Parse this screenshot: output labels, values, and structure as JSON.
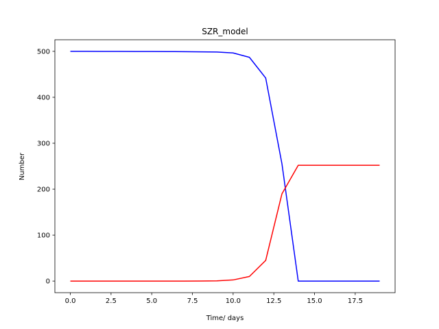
{
  "chart_data": {
    "type": "line",
    "title": "SZR_model",
    "xlabel": "Time/ days",
    "ylabel": "Number",
    "xlim": [
      -0.95,
      19.95
    ],
    "ylim": [
      -25.2,
      525.2
    ],
    "xticks": [
      0.0,
      2.5,
      5.0,
      7.5,
      10.0,
      12.5,
      15.0,
      17.5
    ],
    "xtick_labels": [
      "0.0",
      "2.5",
      "5.0",
      "7.5",
      "10.0",
      "12.5",
      "15.0",
      "17.5"
    ],
    "yticks": [
      0,
      100,
      200,
      300,
      400,
      500
    ],
    "ytick_labels": [
      "0",
      "100",
      "200",
      "300",
      "400",
      "500"
    ],
    "grid": false,
    "x": [
      0,
      1,
      2,
      3,
      4,
      5,
      6,
      7,
      8,
      9,
      10,
      11,
      12,
      13,
      14,
      15,
      16,
      17,
      18,
      19
    ],
    "series": [
      {
        "color": "#0000ff",
        "values": [
          500,
          500,
          499.9,
          499.8,
          499.7,
          499.6,
          499.5,
          499.3,
          499,
          498.5,
          496.5,
          487,
          442,
          255,
          0,
          0,
          0,
          0,
          0,
          0
        ]
      },
      {
        "color": "#ff0000",
        "values": [
          0,
          0,
          0,
          0,
          0,
          0,
          0,
          0,
          0.2,
          0.6,
          2.5,
          10,
          45,
          190,
          252,
          252,
          252,
          252,
          252,
          252
        ]
      }
    ]
  }
}
